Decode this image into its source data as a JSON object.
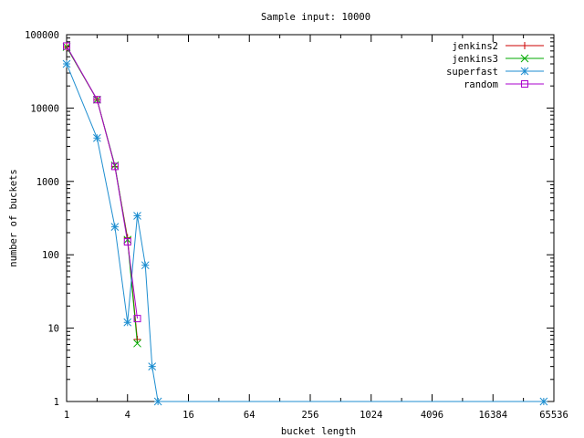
{
  "chart_data": {
    "type": "line",
    "title": "Sample input: 10000",
    "xlabel": "bucket length",
    "ylabel": "number of buckets",
    "x_scale": "log2",
    "y_scale": "log10",
    "xlim": [
      1,
      65536
    ],
    "ylim": [
      1,
      100000
    ],
    "x_ticks": [
      {
        "value": 1,
        "label": "1"
      },
      {
        "value": 4,
        "label": "4"
      },
      {
        "value": 16,
        "label": "16"
      },
      {
        "value": 64,
        "label": "64"
      },
      {
        "value": 256,
        "label": "256"
      },
      {
        "value": 1024,
        "label": "1024"
      },
      {
        "value": 4096,
        "label": "4096"
      },
      {
        "value": 16384,
        "label": "16384"
      },
      {
        "value": 65536,
        "label": "65536"
      }
    ],
    "y_ticks": [
      {
        "value": 1,
        "label": "1"
      },
      {
        "value": 10,
        "label": "10"
      },
      {
        "value": 100,
        "label": "100"
      },
      {
        "value": 1000,
        "label": "1000"
      },
      {
        "value": 10000,
        "label": "10000"
      },
      {
        "value": 100000,
        "label": "100000"
      }
    ],
    "grid": false,
    "legend_position": "top-right",
    "series": [
      {
        "name": "jenkins2",
        "color": "#cc0000",
        "marker": "plus",
        "points": [
          [
            1,
            68000
          ],
          [
            2,
            13000
          ],
          [
            3,
            1600
          ],
          [
            4,
            170
          ],
          [
            5,
            7
          ]
        ]
      },
      {
        "name": "jenkins3",
        "color": "#00aa00",
        "marker": "cross",
        "points": [
          [
            1,
            68000
          ],
          [
            2,
            13000
          ],
          [
            3,
            1650
          ],
          [
            4,
            160
          ],
          [
            5,
            6.2
          ]
        ]
      },
      {
        "name": "superfast",
        "color": "#1e8ed0",
        "marker": "star",
        "points": [
          [
            1,
            40000
          ],
          [
            2,
            3900
          ],
          [
            3,
            240
          ],
          [
            4,
            12
          ],
          [
            5,
            340
          ],
          [
            6,
            72
          ],
          [
            7,
            3
          ],
          [
            8,
            1
          ],
          [
            52000,
            1
          ]
        ]
      },
      {
        "name": "random",
        "color": "#aa00cc",
        "marker": "square",
        "points": [
          [
            1,
            70000
          ],
          [
            2,
            13000
          ],
          [
            3,
            1600
          ],
          [
            4,
            150
          ],
          [
            5,
            13.5
          ]
        ]
      }
    ]
  }
}
